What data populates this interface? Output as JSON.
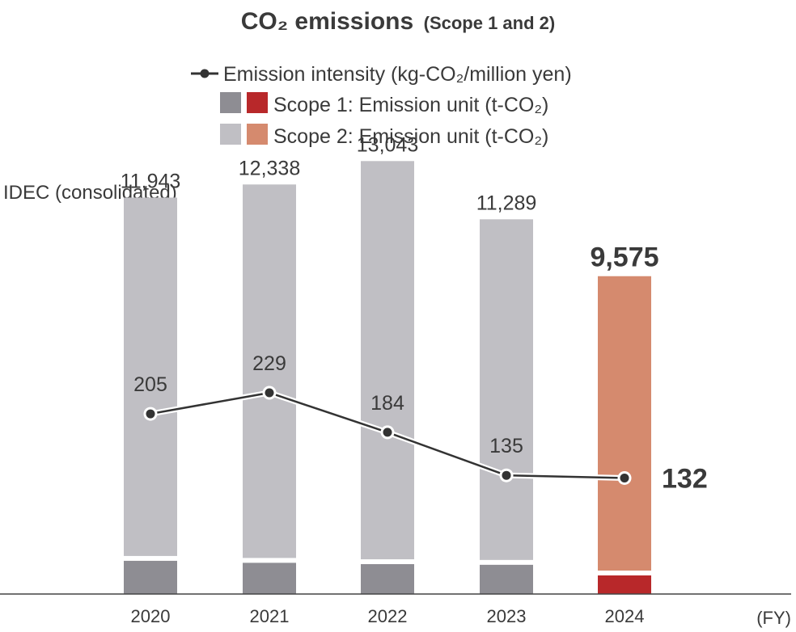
{
  "chart_data": {
    "type": "bar",
    "title": "CO₂ emissions",
    "title_suffix": "(Scope 1 and 2)",
    "subtitle": "IDEC (consolidated)",
    "xlabel": "(FY)",
    "ylabel": "",
    "categories": [
      "2020",
      "2021",
      "2022",
      "2023",
      "2024"
    ],
    "legend": {
      "intensity": "Emission intensity (kg-CO₂/million yen)",
      "scope1": "Scope 1: Emission unit (t-CO₂)",
      "scope2": "Scope 2: Emission unit (t-CO₂)"
    },
    "totals": [
      11943,
      12338,
      13043,
      11289,
      9575
    ],
    "total_labels": [
      "11,943",
      "12,338",
      "13,043",
      "11,289",
      "9,575"
    ],
    "series": [
      {
        "name": "Scope 1: Emission unit (t-CO₂)",
        "values": [
          1000,
          940,
          900,
          880,
          560
        ]
      },
      {
        "name": "Scope 2: Emission unit (t-CO₂)",
        "values": [
          10943,
          11398,
          12143,
          10409,
          9015
        ]
      },
      {
        "name": "Emission intensity (kg-CO₂/million yen)",
        "values": [
          205,
          229,
          184,
          135,
          132
        ],
        "axis": "secondary"
      }
    ],
    "intensity_labels": [
      "205",
      "229",
      "184",
      "135",
      "132"
    ],
    "ylim": [
      0,
      14000
    ],
    "y2lim": [
      0,
      400
    ],
    "highlight_index": 4,
    "colors": {
      "scope1": "#8e8d93",
      "scope2": "#c0bfc4",
      "scope1_highlight": "#b8282a",
      "scope2_highlight": "#d58a6e",
      "line": "#333333",
      "text": "#3a3a3a"
    }
  }
}
